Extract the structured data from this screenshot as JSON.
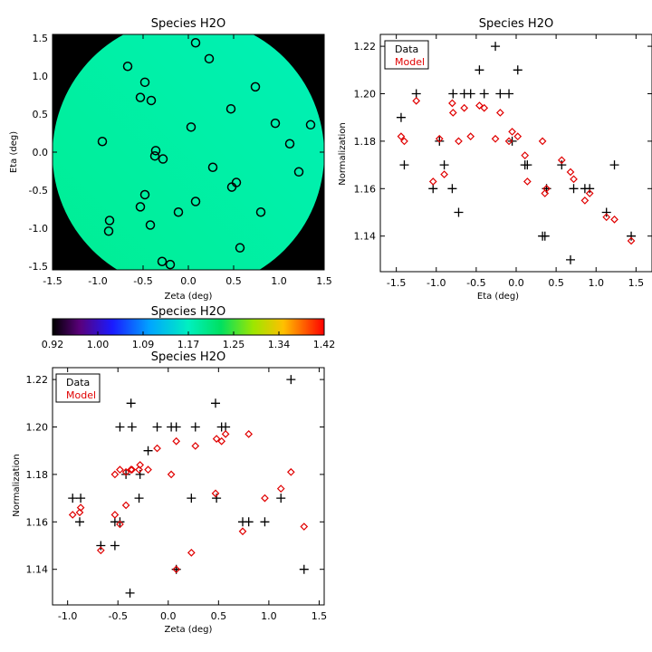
{
  "colors": {
    "data": "#000000",
    "model": "#e00000",
    "background": "#000000"
  },
  "colorbar": {
    "title": "Species H2O",
    "ticks": [
      "0.92",
      "1.00",
      "1.09",
      "1.17",
      "1.25",
      "1.34",
      "1.42"
    ],
    "range": [
      0.92,
      1.42
    ]
  },
  "chart_data": [
    {
      "type": "scatter",
      "title": "Species H2O",
      "xlabel": "Zeta (deg)",
      "ylabel": "Eta (deg)",
      "xlim": [
        -1.5,
        1.5
      ],
      "ylim": [
        -1.55,
        1.55
      ],
      "xticks": [
        "-1.5",
        "-1.0",
        "-0.5",
        "0.0",
        "0.5",
        "1.0",
        "1.5"
      ],
      "yticks": [
        "-1.5",
        "-1.0",
        "-0.5",
        "0.0",
        "0.5",
        "1.0",
        "1.5"
      ],
      "map_value": 1.16,
      "points": [
        [
          0.08,
          1.44
        ],
        [
          -0.67,
          1.13
        ],
        [
          0.23,
          1.23
        ],
        [
          -0.48,
          0.92
        ],
        [
          -0.53,
          0.72
        ],
        [
          -0.41,
          0.68
        ],
        [
          0.74,
          0.86
        ],
        [
          0.47,
          0.57
        ],
        [
          0.96,
          0.38
        ],
        [
          1.35,
          0.36
        ],
        [
          0.03,
          0.33
        ],
        [
          -0.95,
          0.14
        ],
        [
          1.12,
          0.11
        ],
        [
          -0.36,
          0.02
        ],
        [
          -0.37,
          -0.05
        ],
        [
          -0.28,
          -0.09
        ],
        [
          0.27,
          -0.2
        ],
        [
          1.22,
          -0.26
        ],
        [
          0.53,
          -0.4
        ],
        [
          0.48,
          -0.46
        ],
        [
          -0.48,
          -0.56
        ],
        [
          0.08,
          -0.65
        ],
        [
          -0.53,
          -0.72
        ],
        [
          -0.11,
          -0.79
        ],
        [
          0.8,
          -0.79
        ],
        [
          -0.87,
          -0.9
        ],
        [
          -0.42,
          -0.96
        ],
        [
          -0.88,
          -1.04
        ],
        [
          0.57,
          -1.26
        ],
        [
          -0.29,
          -1.44
        ],
        [
          -0.2,
          -1.48
        ]
      ]
    },
    {
      "type": "scatter",
      "title": "Species H2O",
      "xlabel": "Eta (deg)",
      "ylabel": "Normalization",
      "xlim": [
        -1.7,
        1.7
      ],
      "ylim": [
        1.125,
        1.225
      ],
      "xticks": [
        "-1.5",
        "-1.0",
        "-0.5",
        "0.0",
        "0.5",
        "1.0",
        "1.5"
      ],
      "yticks": [
        "1.14",
        "1.16",
        "1.18",
        "1.20",
        "1.22"
      ],
      "legend": [
        "Data",
        "Model"
      ],
      "series": [
        {
          "name": "Data",
          "marker": "plus",
          "points": [
            [
              -1.44,
              1.19
            ],
            [
              -1.4,
              1.17
            ],
            [
              -1.25,
              1.2
            ],
            [
              -1.04,
              1.16
            ],
            [
              -0.96,
              1.18
            ],
            [
              -0.9,
              1.17
            ],
            [
              -0.8,
              1.16
            ],
            [
              -0.79,
              1.2
            ],
            [
              -0.72,
              1.15
            ],
            [
              -0.65,
              1.2
            ],
            [
              -0.57,
              1.2
            ],
            [
              -0.46,
              1.21
            ],
            [
              -0.4,
              1.2
            ],
            [
              -0.26,
              1.22
            ],
            [
              -0.2,
              1.2
            ],
            [
              -0.09,
              1.2
            ],
            [
              -0.05,
              1.18
            ],
            [
              0.02,
              1.21
            ],
            [
              0.11,
              1.17
            ],
            [
              0.14,
              1.17
            ],
            [
              0.33,
              1.14
            ],
            [
              0.36,
              1.14
            ],
            [
              0.38,
              1.16
            ],
            [
              0.57,
              1.17
            ],
            [
              0.68,
              1.13
            ],
            [
              0.72,
              1.16
            ],
            [
              0.86,
              1.16
            ],
            [
              0.92,
              1.16
            ],
            [
              1.13,
              1.15
            ],
            [
              1.23,
              1.17
            ],
            [
              1.44,
              1.14
            ]
          ]
        },
        {
          "name": "Model",
          "marker": "diamond",
          "points": [
            [
              -1.44,
              1.182
            ],
            [
              -1.4,
              1.18
            ],
            [
              -1.25,
              1.197
            ],
            [
              -1.04,
              1.163
            ],
            [
              -0.96,
              1.181
            ],
            [
              -0.9,
              1.166
            ],
            [
              -0.8,
              1.196
            ],
            [
              -0.79,
              1.192
            ],
            [
              -0.72,
              1.18
            ],
            [
              -0.65,
              1.194
            ],
            [
              -0.57,
              1.182
            ],
            [
              -0.46,
              1.195
            ],
            [
              -0.4,
              1.194
            ],
            [
              -0.26,
              1.181
            ],
            [
              -0.2,
              1.192
            ],
            [
              -0.09,
              1.18
            ],
            [
              -0.05,
              1.184
            ],
            [
              0.02,
              1.182
            ],
            [
              0.11,
              1.174
            ],
            [
              0.14,
              1.163
            ],
            [
              0.33,
              1.18
            ],
            [
              0.36,
              1.158
            ],
            [
              0.38,
              1.16
            ],
            [
              0.57,
              1.172
            ],
            [
              0.68,
              1.167
            ],
            [
              0.72,
              1.164
            ],
            [
              0.86,
              1.155
            ],
            [
              0.92,
              1.158
            ],
            [
              1.13,
              1.148
            ],
            [
              1.23,
              1.147
            ],
            [
              1.44,
              1.138
            ]
          ]
        }
      ]
    },
    {
      "type": "scatter",
      "title": "Species H2O",
      "xlabel": "Zeta (deg)",
      "ylabel": "Normalization",
      "xlim": [
        -1.15,
        1.55
      ],
      "ylim": [
        1.125,
        1.225
      ],
      "xticks": [
        "-1.0",
        "-0.5",
        "0.0",
        "0.5",
        "1.0",
        "1.5"
      ],
      "yticks": [
        "1.14",
        "1.16",
        "1.18",
        "1.20",
        "1.22"
      ],
      "legend": [
        "Data",
        "Model"
      ],
      "series": [
        {
          "name": "Data",
          "marker": "plus",
          "points": [
            [
              -0.95,
              1.17
            ],
            [
              -0.88,
              1.16
            ],
            [
              -0.87,
              1.17
            ],
            [
              -0.67,
              1.15
            ],
            [
              -0.53,
              1.15
            ],
            [
              -0.53,
              1.16
            ],
            [
              -0.48,
              1.16
            ],
            [
              -0.48,
              1.2
            ],
            [
              -0.42,
              1.18
            ],
            [
              -0.37,
              1.21
            ],
            [
              -0.36,
              1.2
            ],
            [
              -0.38,
              1.13
            ],
            [
              -0.28,
              1.18
            ],
            [
              -0.29,
              1.17
            ],
            [
              -0.2,
              1.19
            ],
            [
              -0.11,
              1.2
            ],
            [
              0.03,
              1.2
            ],
            [
              0.08,
              1.14
            ],
            [
              0.08,
              1.2
            ],
            [
              0.23,
              1.17
            ],
            [
              0.27,
              1.2
            ],
            [
              0.47,
              1.21
            ],
            [
              0.48,
              1.17
            ],
            [
              0.53,
              1.2
            ],
            [
              0.57,
              1.2
            ],
            [
              0.74,
              1.16
            ],
            [
              0.8,
              1.16
            ],
            [
              0.96,
              1.16
            ],
            [
              1.12,
              1.17
            ],
            [
              1.22,
              1.22
            ],
            [
              1.35,
              1.14
            ]
          ]
        },
        {
          "name": "Model",
          "marker": "diamond",
          "points": [
            [
              -0.95,
              1.163
            ],
            [
              -0.88,
              1.164
            ],
            [
              -0.87,
              1.166
            ],
            [
              -0.67,
              1.148
            ],
            [
              -0.53,
              1.163
            ],
            [
              -0.53,
              1.18
            ],
            [
              -0.48,
              1.182
            ],
            [
              -0.48,
              1.159
            ],
            [
              -0.42,
              1.181
            ],
            [
              -0.37,
              1.182
            ],
            [
              -0.36,
              1.182
            ],
            [
              -0.42,
              1.167
            ],
            [
              -0.28,
              1.184
            ],
            [
              -0.29,
              1.182
            ],
            [
              -0.2,
              1.182
            ],
            [
              -0.11,
              1.191
            ],
            [
              0.03,
              1.18
            ],
            [
              0.08,
              1.14
            ],
            [
              0.08,
              1.194
            ],
            [
              0.23,
              1.147
            ],
            [
              0.27,
              1.192
            ],
            [
              0.47,
              1.172
            ],
            [
              0.48,
              1.195
            ],
            [
              0.53,
              1.194
            ],
            [
              0.57,
              1.197
            ],
            [
              0.74,
              1.156
            ],
            [
              0.8,
              1.197
            ],
            [
              0.96,
              1.17
            ],
            [
              1.12,
              1.174
            ],
            [
              1.22,
              1.181
            ],
            [
              1.35,
              1.158
            ]
          ]
        }
      ]
    }
  ]
}
